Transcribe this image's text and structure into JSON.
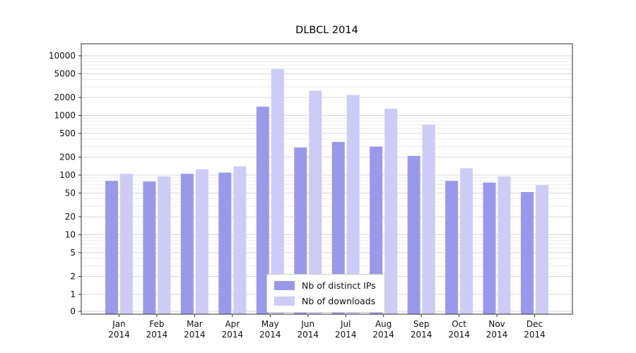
{
  "chart_data": {
    "type": "bar",
    "title": "DLBCL 2014",
    "xlabel": "",
    "ylabel": "",
    "yscale": "symlog",
    "ylim": [
      0,
      10000
    ],
    "grid": true,
    "legend_position": "lower center (inside plot)",
    "categories": [
      "Jan 2014",
      "Feb 2014",
      "Mar 2014",
      "Apr 2014",
      "May 2014",
      "Jun 2014",
      "Jul 2014",
      "Aug 2014",
      "Sep 2014",
      "Oct 2014",
      "Nov 2014",
      "Dec 2014"
    ],
    "yticks": [
      0,
      1,
      2,
      5,
      10,
      20,
      50,
      100,
      200,
      500,
      1000,
      2000,
      5000,
      10000
    ],
    "series": [
      {
        "name": "Nb of distinct IPs",
        "color": "#9999ec",
        "values": [
          80,
          78,
          105,
          110,
          1400,
          290,
          360,
          300,
          210,
          80,
          75,
          52
        ]
      },
      {
        "name": "Nb of downloads",
        "color": "#ccccf6",
        "values": [
          105,
          95,
          125,
          140,
          6000,
          2600,
          2200,
          1300,
          700,
          130,
          95,
          68
        ]
      }
    ],
    "colors": {
      "grid_major": "#d7d7d7",
      "grid_minor": "#ebebeb",
      "axis_frame": "#2f2f2f",
      "tick_text": "#111111",
      "background": "#ffffff"
    }
  }
}
